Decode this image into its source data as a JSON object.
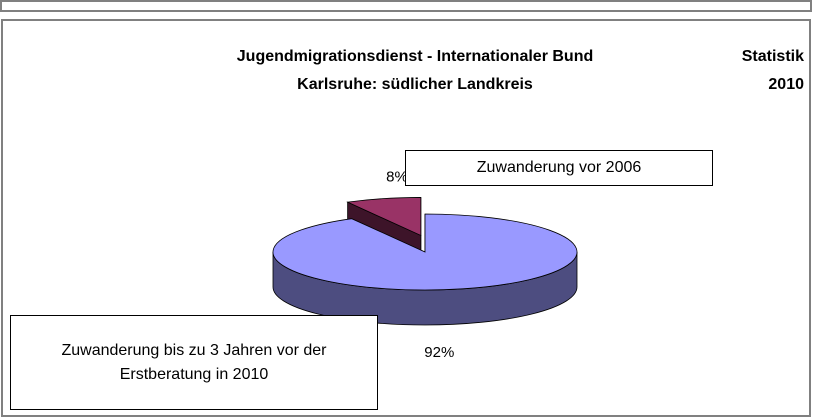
{
  "chart_data": {
    "type": "pie",
    "title": [
      "Jugendmigrationsdienst - Internationaler Bund",
      "Karlsruhe: südlicher Landkreis"
    ],
    "annotations": [
      "Statistik",
      "2010"
    ],
    "categories": [
      "Zuwanderung vor 2006",
      "Zuwanderung bis zu 3 Jahren vor der Erstberatung in 2010"
    ],
    "values": [
      8,
      92
    ],
    "value_labels": [
      "8%",
      "92%"
    ],
    "colors": [
      "#993366",
      "#9999ff"
    ]
  }
}
